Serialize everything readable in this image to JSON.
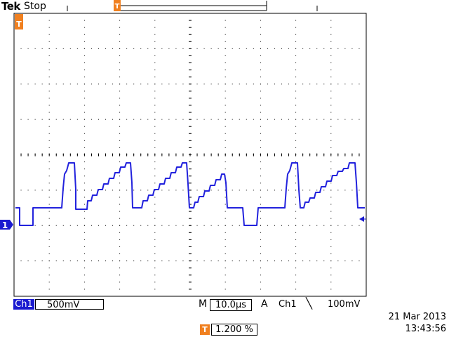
{
  "header": {
    "brand": "Tek",
    "acq_state": "Stop"
  },
  "channel": {
    "name": "Ch1",
    "marker": "1",
    "volts_per_div": "500mV",
    "color": "#1a1ad0"
  },
  "timebase": {
    "mode_label": "M",
    "sec_per_div": "10.0µs"
  },
  "trigger": {
    "mode_label": "A",
    "source": "Ch1",
    "slope_symbol": "╲",
    "level": "100mV",
    "position_icon": "T",
    "position": "1.200 %",
    "marker_color": "#f08020"
  },
  "timestamp": {
    "date": "21 Mar  2013",
    "time": "13:43:56"
  },
  "icons": [
    "trigger-position-icon",
    "channel-ground-marker-icon",
    "trigger-level-arrow-icon"
  ]
}
